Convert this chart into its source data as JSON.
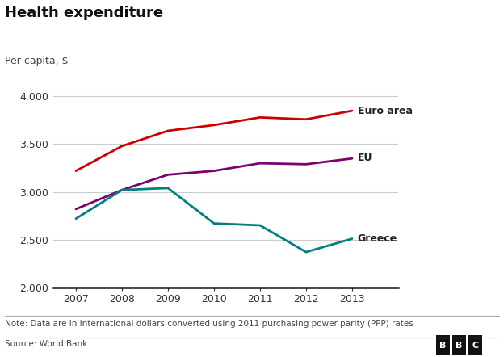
{
  "title": "Health expenditure",
  "ylabel": "Per capita, $",
  "years": [
    2007,
    2008,
    2009,
    2010,
    2011,
    2012,
    2013
  ],
  "euro_area": [
    3220,
    3480,
    3640,
    3700,
    3780,
    3760,
    3850
  ],
  "eu": [
    2820,
    3020,
    3180,
    3220,
    3300,
    3290,
    3350
  ],
  "greece": [
    2720,
    3020,
    3040,
    2670,
    2650,
    2370,
    2510
  ],
  "euro_area_color": "#cc0000",
  "eu_color": "#7b0070",
  "greece_color": "#008080",
  "ylim": [
    2000,
    4150
  ],
  "yticks": [
    2000,
    2500,
    3000,
    3500,
    4000
  ],
  "bg_color": "#ffffff",
  "grid_color": "#cccccc",
  "note": "Note: Data are in international dollars converted using 2011 purchasing power parity (PPP) rates",
  "source": "Source: World Bank",
  "line_width": 2.0,
  "label_euro_area": "Euro area",
  "label_eu": "EU",
  "label_greece": "Greece",
  "label_color": "#222222"
}
